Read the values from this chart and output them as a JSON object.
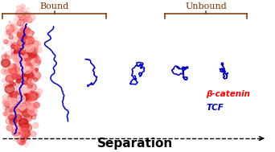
{
  "title": "Separation",
  "bound_label": "Bound",
  "unbound_label": "Unbound",
  "beta_catenin_label": "β-catenin",
  "tcf_label": "TCF",
  "bg_color": "#ffffff",
  "bracket_color": "#7B3200",
  "beta_label_color": "#ff0000",
  "tcf_label_color": "#0000bb",
  "arrow_color": "#000000",
  "protein_red_light": "#ffaaaa",
  "protein_red_mid": "#ee4444",
  "protein_red_dark": "#cc1111",
  "tcf_blue": "#0000cc",
  "separation_fontsize": 11,
  "label_fontsize": 8,
  "legend_fontsize": 7.5
}
